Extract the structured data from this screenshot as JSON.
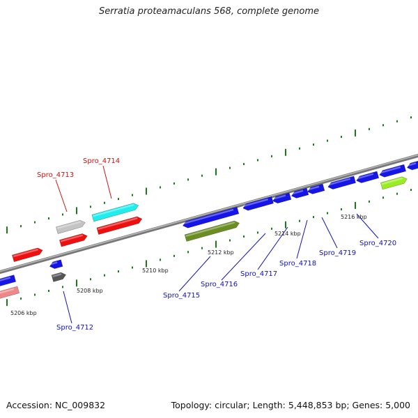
{
  "title": "Serratia proteamaculans 568, complete genome",
  "accession_label": "Accession: NC_009832",
  "summary_label": "Topology: circular; Length: 5,448,853 bp; Genes: 5,000",
  "colors": {
    "backbone": "#888888",
    "tick": "#1a7a1a",
    "forward_label": "#d01010",
    "reverse_label": "#1010c0",
    "blue_gene": "#1515e8",
    "red_gene": "#ee1010",
    "cyan_gene": "#20eeee",
    "olive_gene": "#6b8e23",
    "lime_gene": "#99ee22",
    "grey_gene": "#c4c4c4",
    "dark_grey_gene": "#555555",
    "pink_gene": "#ee8888"
  },
  "scale_labels": [
    "5206 kbp",
    "5208 kbp",
    "5210 kbp",
    "5212 kbp",
    "5214 kbp",
    "5216 kbp"
  ],
  "forward_gene_labels": [
    "Spro_4713",
    "Spro_4714"
  ],
  "reverse_gene_labels": [
    "Spro_4712",
    "Spro_4715",
    "Spro_4716",
    "Spro_4717",
    "Spro_4718",
    "Spro_4719",
    "Spro_4720"
  ]
}
